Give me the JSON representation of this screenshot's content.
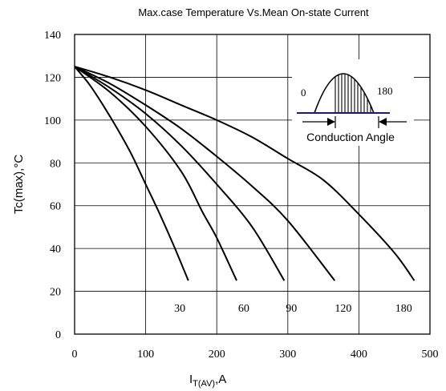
{
  "chart_data": {
    "type": "line",
    "title": "Max.case Temperature Vs.Mean On-state Current",
    "xlabel": "I",
    "xlabel_sub": "T(AV)",
    "xlabel_suffix": ",A",
    "ylabel": "Tc(max),°C",
    "xlim": [
      0,
      500
    ],
    "ylim": [
      0,
      140
    ],
    "xticks": [
      0,
      100,
      200,
      300,
      400,
      500
    ],
    "yticks": [
      0,
      20,
      40,
      60,
      80,
      100,
      120,
      140
    ],
    "grid": true,
    "series": [
      {
        "name": "30",
        "label_x": 148,
        "points": [
          [
            0,
            125
          ],
          [
            20,
            117
          ],
          [
            40,
            107
          ],
          [
            60,
            96
          ],
          [
            80,
            84
          ],
          [
            100,
            70
          ],
          [
            120,
            56
          ],
          [
            140,
            41
          ],
          [
            160,
            25
          ]
        ]
      },
      {
        "name": "60",
        "label_x": 238,
        "points": [
          [
            0,
            125
          ],
          [
            50,
            113
          ],
          [
            100,
            97
          ],
          [
            150,
            76
          ],
          [
            180,
            57
          ],
          [
            200,
            45
          ],
          [
            228,
            25
          ]
        ]
      },
      {
        "name": "90",
        "label_x": 305,
        "points": [
          [
            0,
            125
          ],
          [
            50,
            115
          ],
          [
            100,
            103
          ],
          [
            150,
            88
          ],
          [
            200,
            70
          ],
          [
            250,
            50
          ],
          [
            295,
            25
          ]
        ]
      },
      {
        "name": "120",
        "label_x": 378,
        "points": [
          [
            0,
            125
          ],
          [
            50,
            117
          ],
          [
            100,
            107
          ],
          [
            150,
            96
          ],
          [
            200,
            83
          ],
          [
            250,
            69
          ],
          [
            300,
            53
          ],
          [
            366,
            25
          ]
        ]
      },
      {
        "name": "180",
        "label_x": 463,
        "points": [
          [
            0,
            125
          ],
          [
            50,
            120
          ],
          [
            100,
            114
          ],
          [
            150,
            107
          ],
          [
            200,
            100
          ],
          [
            250,
            92
          ],
          [
            300,
            82
          ],
          [
            350,
            72
          ],
          [
            400,
            56
          ],
          [
            450,
            38
          ],
          [
            478,
            25
          ]
        ]
      }
    ],
    "inset": {
      "left_label": "0",
      "right_label": "180",
      "caption": "Conduction Angle"
    }
  }
}
